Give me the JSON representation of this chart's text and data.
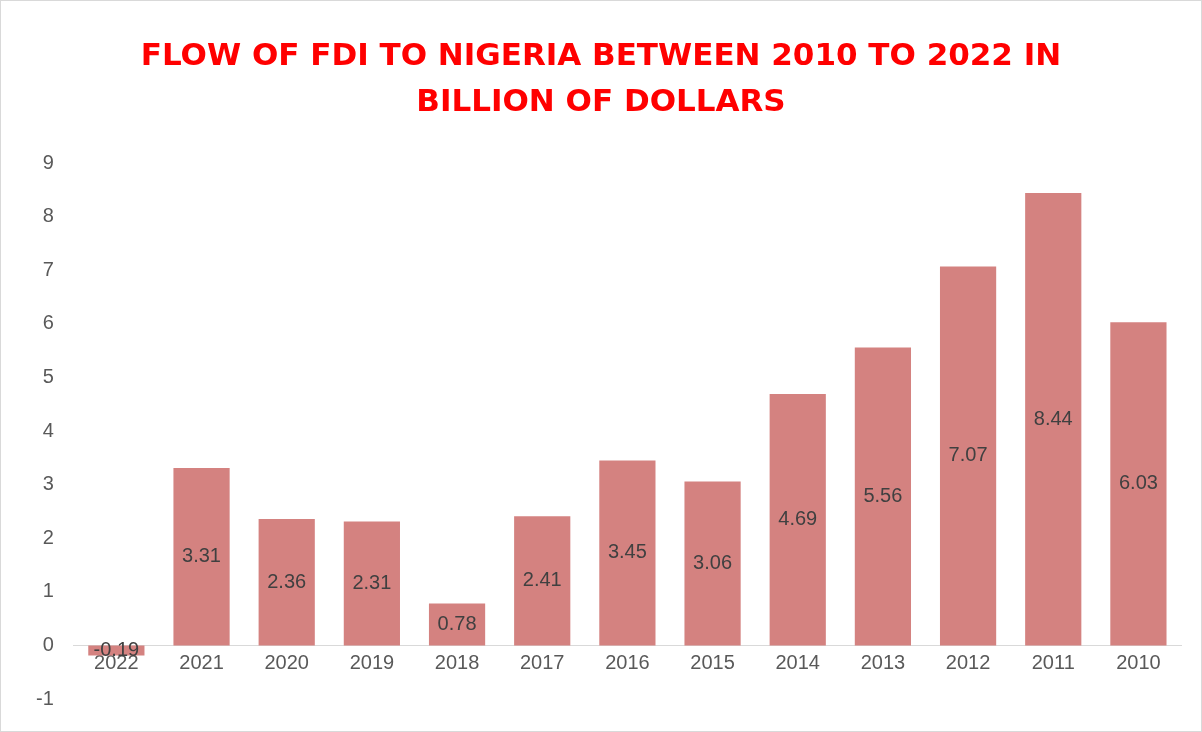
{
  "chart_data": {
    "type": "bar",
    "title": "FLOW OF FDI TO NIGERIA BETWEEN 2010 TO 2022 IN BILLION OF DOLLARS",
    "categories": [
      "2022",
      "2021",
      "2020",
      "2019",
      "2018",
      "2017",
      "2016",
      "2015",
      "2014",
      "2013",
      "2012",
      "2011",
      "2010"
    ],
    "values": [
      -0.19,
      3.31,
      2.36,
      2.31,
      0.78,
      2.41,
      3.45,
      3.06,
      4.69,
      5.56,
      7.07,
      8.44,
      6.03
    ],
    "color": "#d48280",
    "ylim": [
      -1,
      9
    ],
    "yticks": [
      -1,
      0,
      1,
      2,
      3,
      4,
      5,
      6,
      7,
      8,
      9
    ],
    "grid": false,
    "legend": false,
    "data_labels": true
  }
}
